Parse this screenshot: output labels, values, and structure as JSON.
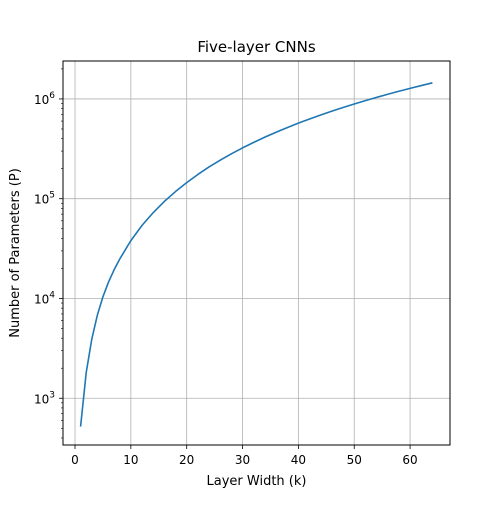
{
  "chart_data": {
    "type": "line",
    "title": "Five-layer CNNs",
    "xlabel": "Layer Width (k)",
    "ylabel": "Number of Parameters (P)",
    "xlim": [
      -2.15,
      67.15
    ],
    "ylim": [
      340,
      2400000
    ],
    "yscale": "log",
    "grid": true,
    "x_ticks": [
      0,
      10,
      20,
      30,
      40,
      50,
      60
    ],
    "x_tick_labels": [
      "0",
      "10",
      "20",
      "30",
      "40",
      "50",
      "60"
    ],
    "y_ticks": [
      1000,
      10000,
      100000,
      1000000
    ],
    "y_tick_labels": [
      {
        "base": "10",
        "exp": "3"
      },
      {
        "base": "10",
        "exp": "4"
      },
      {
        "base": "10",
        "exp": "5"
      },
      {
        "base": "10",
        "exp": "6"
      }
    ],
    "series": [
      {
        "color": "#1f77b4",
        "x": [
          1,
          2,
          3,
          4,
          5,
          6,
          7,
          8,
          10,
          12,
          14,
          16,
          18,
          20,
          22,
          24,
          26,
          28,
          30,
          32,
          34,
          36,
          38,
          40,
          42,
          44,
          46,
          48,
          50,
          52,
          54,
          56,
          58,
          60,
          62,
          64
        ],
        "y": [
          520,
          1800,
          3900,
          6800,
          10400,
          14600,
          19400,
          24800,
          38000,
          54000,
          72500,
          94000,
          118000,
          145000,
          175000,
          208000,
          243000,
          282000,
          323000,
          367000,
          414000,
          464000,
          516000,
          572000,
          630000,
          691000,
          754000,
          821000,
          890000,
          962000,
          1036000,
          1114000,
          1194000,
          1277000,
          1362000,
          1451000
        ]
      }
    ]
  }
}
